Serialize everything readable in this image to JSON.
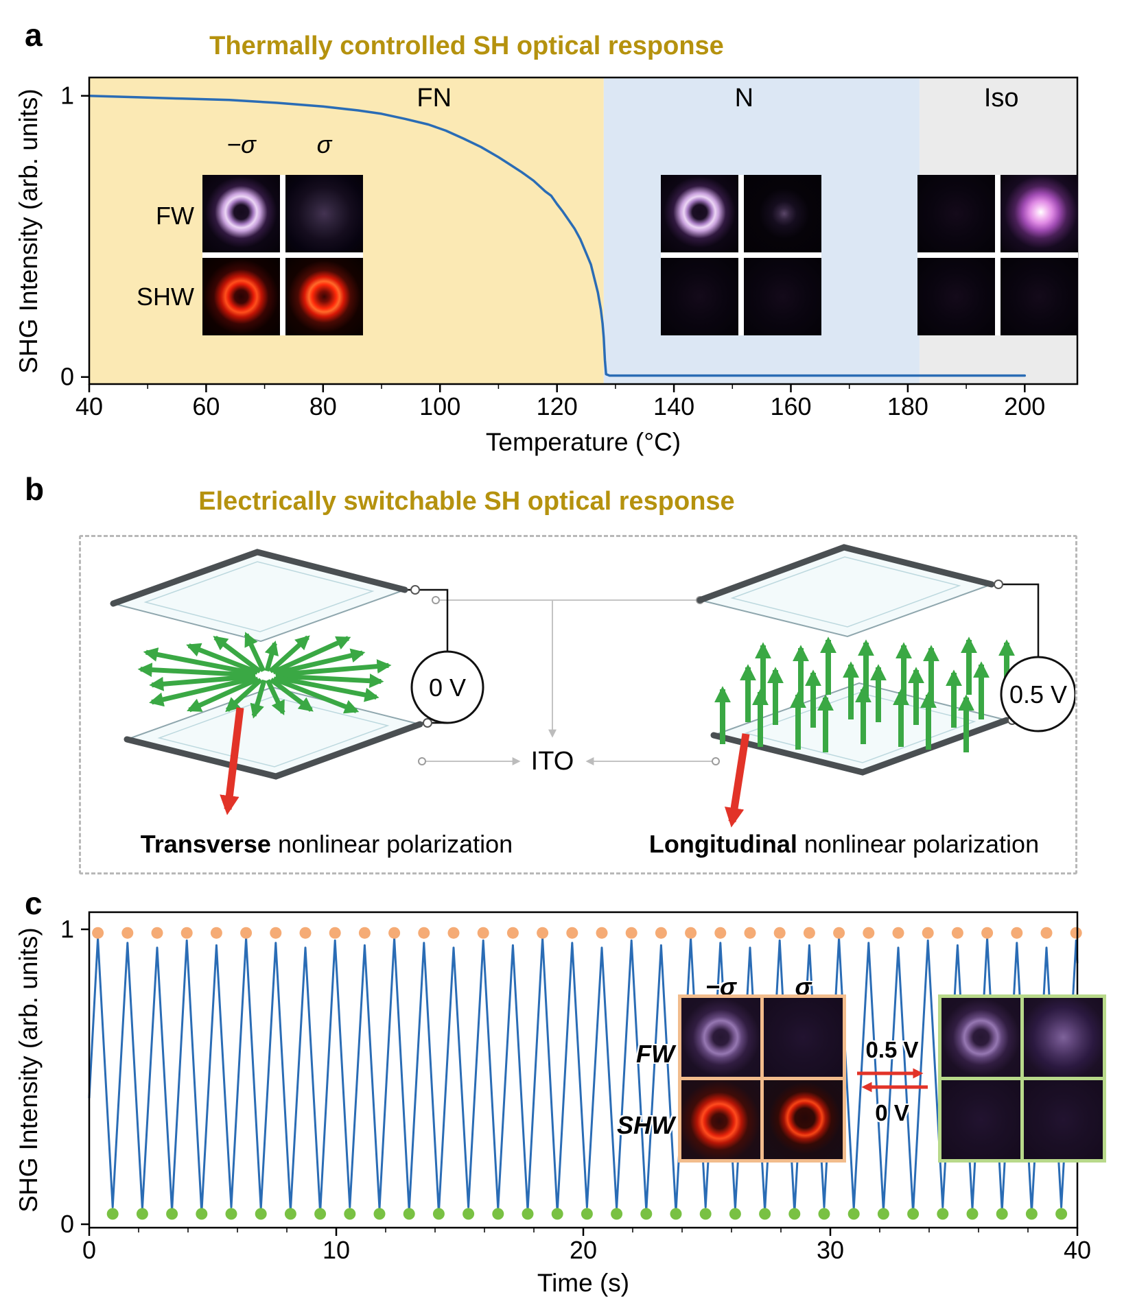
{
  "figure": {
    "panels": {
      "a": {
        "label": "a",
        "title": "Thermally controlled SH optical response",
        "insets": {
          "col_labels": [
            "−σ",
            "σ"
          ],
          "row_labels": [
            "FW",
            "SHW"
          ]
        }
      },
      "b": {
        "label": "b",
        "title": "Electrically switchable SH optical response",
        "left_voltage": "0 V",
        "right_voltage": "0.5 V",
        "ito_label": "ITO",
        "left_caption_bold": "Transverse",
        "left_caption_rest": " nonlinear polarization",
        "right_caption_bold": "Longitudinal",
        "right_caption_rest": " nonlinear polarization"
      },
      "c": {
        "label": "c",
        "insets": {
          "col_labels": [
            "−σ",
            "σ"
          ],
          "row_labels": [
            "FW",
            "SHW"
          ],
          "switch_up_label": "0.5 V",
          "switch_down_label": "0 V"
        }
      }
    }
  },
  "chart_data": [
    {
      "id": "panel_a_thermal",
      "type": "line",
      "title": "Thermally controlled SH optical response",
      "xlabel": "Temperature (°C)",
      "ylabel": "SHG Intensity (arb. units)",
      "xlim": [
        40,
        209
      ],
      "ylim": [
        0,
        1
      ],
      "xticks": [
        40,
        60,
        80,
        100,
        120,
        140,
        160,
        180,
        200
      ],
      "yticks": [
        0,
        1
      ],
      "grid": false,
      "line_color": "#2a6cb5",
      "regions": [
        {
          "label": "FN",
          "from": 40,
          "to": 128,
          "color": "#fbe9b4",
          "label_t": 99
        },
        {
          "label": "N",
          "from": 128,
          "to": 182,
          "color": "#dce7f4",
          "label_t": 152
        },
        {
          "label": "Iso",
          "from": 182,
          "to": 209,
          "color": "#ebebeb",
          "label_t": 196
        }
      ],
      "points": [
        [
          40,
          1.0
        ],
        [
          48,
          0.995
        ],
        [
          56,
          0.99
        ],
        [
          64,
          0.985
        ],
        [
          72,
          0.975
        ],
        [
          80,
          0.962
        ],
        [
          86,
          0.948
        ],
        [
          90,
          0.936
        ],
        [
          94,
          0.918
        ],
        [
          98,
          0.898
        ],
        [
          101,
          0.876
        ],
        [
          104,
          0.848
        ],
        [
          107,
          0.818
        ],
        [
          110,
          0.782
        ],
        [
          112,
          0.755
        ],
        [
          114,
          0.728
        ],
        [
          116,
          0.698
        ],
        [
          118,
          0.66
        ],
        [
          119,
          0.645
        ],
        [
          120,
          0.615
        ],
        [
          121,
          0.588
        ],
        [
          122,
          0.558
        ],
        [
          123,
          0.528
        ],
        [
          124,
          0.49
        ],
        [
          125,
          0.44
        ],
        [
          125.8,
          0.4
        ],
        [
          126.4,
          0.35
        ],
        [
          127,
          0.3
        ],
        [
          127.5,
          0.24
        ],
        [
          127.8,
          0.19
        ],
        [
          128,
          0.14
        ],
        [
          128.2,
          0.06
        ],
        [
          128.4,
          0.01
        ],
        [
          129,
          0.005
        ],
        [
          140,
          0.005
        ],
        [
          160,
          0.005
        ],
        [
          180,
          0.005
        ],
        [
          200,
          0.005
        ]
      ]
    },
    {
      "id": "panel_c_switching",
      "type": "line",
      "title": "",
      "xlabel": "Time (s)",
      "ylabel": "SHG Intensity (arb. units)",
      "xlim": [
        0,
        40
      ],
      "ylim": [
        0,
        1
      ],
      "xticks": [
        0,
        10,
        20,
        30,
        40
      ],
      "yticks": [
        0,
        1
      ],
      "grid": false,
      "line_color": "#2a6cb5",
      "oscillation": {
        "first_peak_s": 0.35,
        "period_s": 1.2,
        "cycles": 34,
        "high": 0.97,
        "low": 0.04
      },
      "markers": {
        "peak_color": "#f5ab75",
        "valley_color": "#79c143"
      }
    }
  ]
}
